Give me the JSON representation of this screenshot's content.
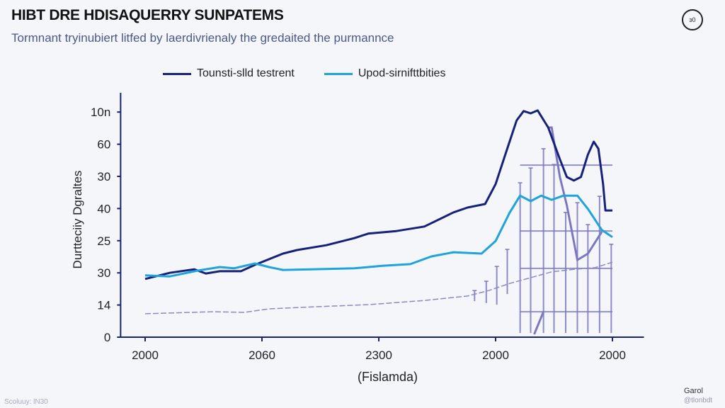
{
  "header": {
    "title": "HIBT DRE HDISAQUERRY SUNPATEMS",
    "subtitle": "Tormnant tryinubiert litfed by laerdivrienaly the gredaited the purmannce",
    "badge": "ɜ0"
  },
  "footer": {
    "left": "Scoluuy: lN30",
    "brand": "Garol",
    "handle": "@tlonbdt"
  },
  "chart_data": {
    "type": "line",
    "title": "HIBT DRE HDISAQUERRY SUNPATEMS",
    "subtitle": "Tormnant tryinubiert litfed by laerdivrienaly the gredaited the purmannce",
    "xlabel": "(Fislamda)",
    "ylabel": "Durtteciiy Dgraltes",
    "x_ticks": [
      "2000",
      "2060",
      "2300",
      "2000",
      "2000"
    ],
    "y_ticks": [
      "0",
      "14",
      "30",
      "25",
      "40",
      "30",
      "60",
      "10n"
    ],
    "xlim": [
      -0.21,
      4.27
    ],
    "ylim": [
      0,
      7.6
    ],
    "grid": false,
    "legend": "top-center",
    "colors": {
      "series1": "#17217a",
      "series2": "#1fa3dc",
      "dashed": "#8c8ac6",
      "overlay": "#7b78c0",
      "axis": "#1a2370"
    },
    "series": [
      {
        "name": "Tounsti-slld testrent",
        "color": "#17217a",
        "x": [
          0,
          0.21,
          0.42,
          0.52,
          0.64,
          0.82,
          0.94,
          1.18,
          1.3,
          1.55,
          1.79,
          1.91,
          2.15,
          2.39,
          2.64,
          2.76,
          2.91,
          3.0,
          3.09,
          3.18,
          3.24,
          3.3,
          3.36,
          3.45,
          3.55,
          3.61,
          3.67,
          3.73,
          3.79,
          3.84,
          3.88,
          3.92,
          3.94,
          4.0
        ],
        "y": [
          1.81,
          2.0,
          2.11,
          1.98,
          2.05,
          2.05,
          2.25,
          2.6,
          2.71,
          2.86,
          3.08,
          3.22,
          3.3,
          3.44,
          3.88,
          4.03,
          4.14,
          4.76,
          5.75,
          6.74,
          7.03,
          6.96,
          7.05,
          6.52,
          5.53,
          4.98,
          4.87,
          4.98,
          5.68,
          6.08,
          5.86,
          4.76,
          3.94,
          3.94
        ]
      },
      {
        "name": "Upod-sirnifttbities",
        "color": "#1fa3dc",
        "x": [
          0,
          0.21,
          0.45,
          0.64,
          0.76,
          0.94,
          1.06,
          1.18,
          1.42,
          1.79,
          2.03,
          2.27,
          2.45,
          2.64,
          2.88,
          3.0,
          3.12,
          3.21,
          3.3,
          3.39,
          3.48,
          3.58,
          3.64,
          3.7,
          3.79,
          3.91,
          4.0
        ],
        "y": [
          1.92,
          1.89,
          2.07,
          2.18,
          2.14,
          2.29,
          2.18,
          2.09,
          2.11,
          2.14,
          2.22,
          2.27,
          2.51,
          2.64,
          2.6,
          2.99,
          3.87,
          4.4,
          4.23,
          4.4,
          4.27,
          4.4,
          4.4,
          4.4,
          3.99,
          3.33,
          3.11
        ]
      },
      {
        "color": "#8c8ac6",
        "style": "dashed",
        "x": [
          0,
          0.58,
          0.85,
          1.06,
          1.48,
          1.91,
          2.39,
          2.76,
          2.94,
          3.12,
          3.3,
          3.48,
          3.67,
          3.85,
          4.0
        ],
        "y": [
          0.73,
          0.79,
          0.77,
          0.88,
          0.95,
          1.01,
          1.14,
          1.28,
          1.45,
          1.67,
          1.85,
          2.03,
          2.11,
          2.16,
          2.33
        ]
      }
    ],
    "overlay_line": {
      "x": [
        3.45,
        3.48,
        3.55,
        3.61,
        3.7,
        3.79,
        3.91
      ],
      "y": [
        6.52,
        6.52,
        4.98,
        4.1,
        2.4,
        2.6,
        3.28
      ]
    },
    "overlay_segment": {
      "x": [
        3.33,
        3.41
      ],
      "y": [
        0.09,
        0.79
      ]
    },
    "error_bars": [
      {
        "x": 2.82,
        "low": 1.12,
        "high": 1.45
      },
      {
        "x": 2.92,
        "low": 1.06,
        "high": 1.74
      },
      {
        "x": 3.01,
        "low": 1.01,
        "high": 2.2
      },
      {
        "x": 3.1,
        "low": 1.34,
        "high": 2.73
      },
      {
        "x": 3.21,
        "low": 0.13,
        "high": 4.8
      },
      {
        "x": 3.3,
        "low": 0.13,
        "high": 5.26
      },
      {
        "x": 3.41,
        "low": 0.13,
        "high": 5.86
      },
      {
        "x": 3.5,
        "low": 0.13,
        "high": 5.37
      },
      {
        "x": 3.6,
        "low": 0.13,
        "high": 3.88
      },
      {
        "x": 3.7,
        "low": 0.13,
        "high": 4.18
      },
      {
        "x": 3.79,
        "low": 0.13,
        "high": 3.5
      },
      {
        "x": 3.89,
        "low": 0.13,
        "high": 4.38
      },
      {
        "x": 3.99,
        "low": 0.13,
        "high": 2.89
      }
    ],
    "reference_bands": {
      "x_range": [
        3.21,
        4.0
      ],
      "y": [
        5.35,
        3.3,
        2.14,
        0.79
      ]
    }
  }
}
